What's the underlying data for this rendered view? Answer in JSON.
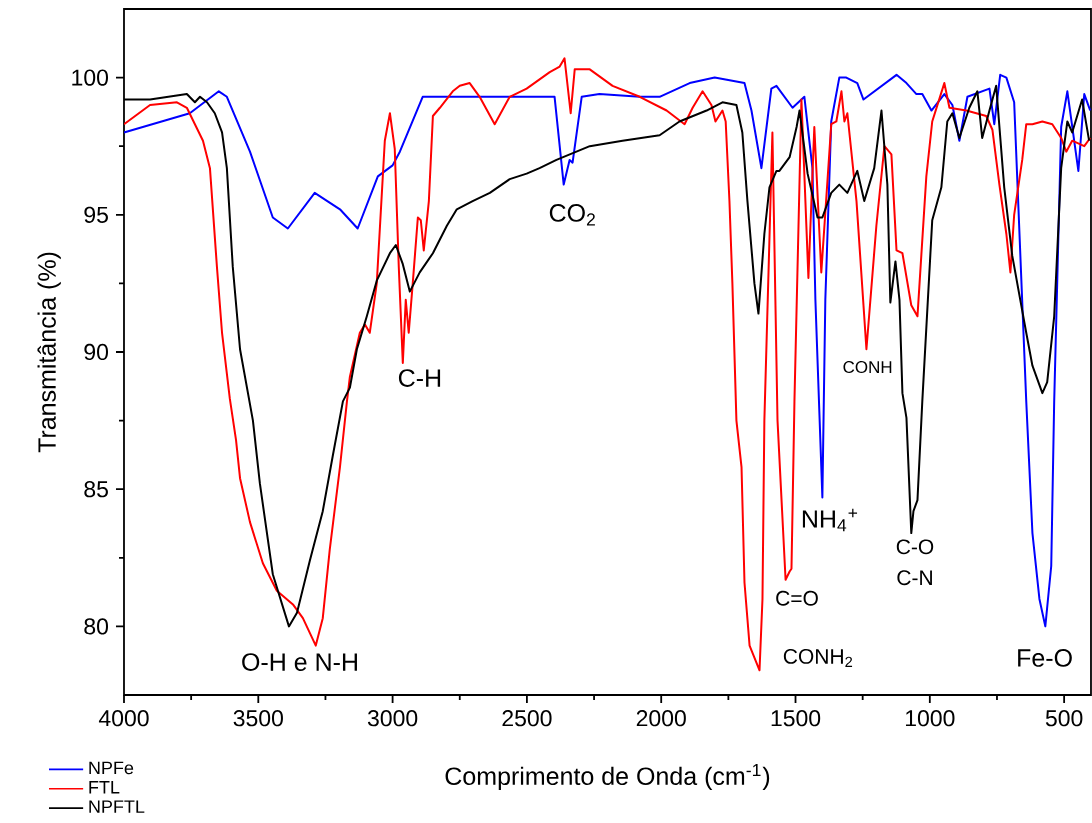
{
  "chart_data": {
    "type": "line",
    "xlabel": "Comprimento de Onda (cm$^{-1}$)",
    "ylabel": "Transmitância (%)",
    "xlim": [
      4000,
      400
    ],
    "xticks": [
      4000,
      3500,
      3000,
      2500,
      2000,
      1500,
      1000,
      500
    ],
    "ylim": [
      77.5,
      102.5
    ],
    "yticks": [
      80,
      85,
      90,
      95,
      100
    ],
    "legend": "bottom left",
    "line_style": "solid",
    "series": [
      {
        "name": "NPFe",
        "color": "#0000ff",
        "x": [
          4000,
          3755,
          3647,
          3617,
          3531,
          3446,
          3390,
          3290,
          3196,
          3130,
          3055,
          3000,
          2973,
          2888,
          2824,
          2397,
          2363,
          2341,
          2330,
          2296,
          2230,
          2080,
          2006,
          1894,
          1801,
          1690,
          1664,
          1627,
          1590,
          1571,
          1511,
          1467,
          1437,
          1426,
          1400,
          1389,
          1367,
          1337,
          1311,
          1270,
          1247,
          1124,
          1087,
          1050,
          1028,
          994,
          946,
          916,
          890,
          860,
          778,
          760,
          738,
          715,
          686,
          641,
          618,
          592,
          570,
          548,
          537,
          511,
          488,
          447,
          425,
          403
        ],
        "values": [
          98.0,
          98.7,
          99.5,
          99.3,
          97.3,
          94.9,
          94.5,
          95.8,
          95.2,
          94.5,
          96.4,
          96.8,
          97.3,
          99.3,
          99.3,
          99.3,
          96.1,
          97.0,
          96.9,
          99.3,
          99.4,
          99.3,
          99.3,
          99.8,
          100.0,
          99.8,
          98.8,
          96.7,
          99.6,
          99.7,
          98.9,
          99.3,
          96.7,
          91.9,
          84.7,
          91.9,
          98.4,
          100.0,
          100.0,
          99.8,
          99.2,
          100.1,
          99.8,
          99.4,
          99.4,
          98.8,
          99.4,
          99.0,
          97.7,
          99.3,
          99.6,
          98.3,
          100.1,
          100.0,
          99.1,
          88.2,
          83.4,
          81.0,
          80.0,
          82.2,
          88.2,
          98.2,
          99.5,
          96.6,
          99.4,
          98.8
        ]
      },
      {
        "name": "FTL",
        "color": "#ff0000",
        "x": [
          4000,
          3903,
          3803,
          3766,
          3736,
          3706,
          3680,
          3654,
          3635,
          3606,
          3583,
          3568,
          3531,
          3483,
          3431,
          3371,
          3334,
          3286,
          3260,
          3234,
          3196,
          3170,
          3159,
          3122,
          3103,
          3085,
          3059,
          3029,
          3010,
          2992,
          2977,
          2962,
          2951,
          2940,
          2925,
          2906,
          2895,
          2884,
          2865,
          2850,
          2824,
          2776,
          2750,
          2713,
          2676,
          2620,
          2564,
          2501,
          2415,
          2378,
          2360,
          2337,
          2322,
          2266,
          2181,
          2080,
          1980,
          1913,
          1883,
          1846,
          1813,
          1798,
          1772,
          1760,
          1746,
          1735,
          1720,
          1701,
          1690,
          1671,
          1634,
          1623,
          1616,
          1586,
          1567,
          1537,
          1522,
          1515,
          1504,
          1478,
          1452,
          1430,
          1404,
          1367,
          1348,
          1329,
          1318,
          1307,
          1273,
          1236,
          1199,
          1169,
          1143,
          1124,
          1102,
          1069,
          1046,
          1013,
          991,
          946,
          927,
          864,
          790,
          767,
          741,
          715,
          700,
          686,
          656,
          641,
          618,
          581,
          544,
          511,
          492,
          470,
          425,
          403
        ],
        "values": [
          98.3,
          99.0,
          99.1,
          98.9,
          98.3,
          97.7,
          96.7,
          93.1,
          90.7,
          88.3,
          86.8,
          85.4,
          83.8,
          82.3,
          81.3,
          80.8,
          80.3,
          79.3,
          80.3,
          82.8,
          85.8,
          88.2,
          89.1,
          90.7,
          91.0,
          90.7,
          92.5,
          97.7,
          98.7,
          97.4,
          93.1,
          89.6,
          91.9,
          90.7,
          92.5,
          94.9,
          94.8,
          93.7,
          95.5,
          98.6,
          98.9,
          99.5,
          99.7,
          99.8,
          99.3,
          98.3,
          99.3,
          99.6,
          100.2,
          100.4,
          100.7,
          98.7,
          100.3,
          100.3,
          99.7,
          99.3,
          98.8,
          98.3,
          98.9,
          99.5,
          99.0,
          98.4,
          98.8,
          98.4,
          95.5,
          92.5,
          87.5,
          85.8,
          81.6,
          79.3,
          78.4,
          81.0,
          87.5,
          98.0,
          87.5,
          81.7,
          82.0,
          82.1,
          88.2,
          99.2,
          92.7,
          98.2,
          92.9,
          98.3,
          98.4,
          99.5,
          98.4,
          98.7,
          95.5,
          90.1,
          94.6,
          97.5,
          97.2,
          93.7,
          93.6,
          91.7,
          91.3,
          96.4,
          98.4,
          99.8,
          98.9,
          98.8,
          98.6,
          98.1,
          96.1,
          94.3,
          92.9,
          95.0,
          97.0,
          98.3,
          98.3,
          98.4,
          98.3,
          97.8,
          97.3,
          97.7,
          97.5,
          97.8
        ]
      },
      {
        "name": "NPFTL",
        "color": "#000000",
        "x": [
          4000,
          3903,
          3766,
          3736,
          3717,
          3691,
          3662,
          3635,
          3617,
          3595,
          3568,
          3520,
          3494,
          3446,
          3386,
          3356,
          3308,
          3260,
          3223,
          3185,
          3159,
          3133,
          3096,
          3059,
          3010,
          2988,
          2962,
          2936,
          2899,
          2850,
          2798,
          2761,
          2702,
          2638,
          2564,
          2501,
          2453,
          2390,
          2266,
          2144,
          2006,
          1932,
          1831,
          1772,
          1720,
          1698,
          1679,
          1653,
          1638,
          1616,
          1597,
          1571,
          1560,
          1522,
          1496,
          1485,
          1455,
          1418,
          1400,
          1367,
          1337,
          1307,
          1270,
          1244,
          1207,
          1180,
          1158,
          1147,
          1128,
          1113,
          1102,
          1087,
          1069,
          1061,
          1046,
          1028,
          991,
          957,
          935,
          916,
          890,
          853,
          823,
          805,
          778,
          753,
          723,
          693,
          667,
          641,
          618,
          581,
          563,
          537,
          511,
          488,
          470,
          433,
          407
        ],
        "values": [
          99.2,
          99.2,
          99.4,
          99.1,
          99.3,
          99.1,
          98.7,
          98.0,
          96.7,
          93.1,
          90.1,
          87.5,
          85.2,
          81.9,
          80.0,
          80.5,
          82.4,
          84.2,
          86.2,
          88.2,
          88.7,
          90.1,
          91.3,
          92.6,
          93.6,
          93.9,
          93.2,
          92.2,
          92.9,
          93.6,
          94.6,
          95.2,
          95.5,
          95.8,
          96.3,
          96.5,
          96.7,
          97.0,
          97.5,
          97.7,
          97.9,
          98.4,
          98.8,
          99.1,
          99.0,
          98.0,
          95.5,
          92.5,
          91.4,
          94.3,
          96.0,
          96.6,
          96.6,
          97.1,
          98.2,
          98.8,
          96.5,
          94.9,
          94.9,
          95.8,
          96.1,
          95.8,
          96.6,
          95.5,
          96.7,
          98.8,
          96.1,
          91.8,
          93.3,
          91.9,
          88.5,
          87.6,
          83.4,
          84.2,
          84.6,
          88.2,
          94.8,
          96.0,
          98.4,
          98.7,
          97.8,
          98.9,
          99.5,
          97.8,
          98.8,
          99.7,
          96.0,
          93.5,
          92.1,
          90.7,
          89.5,
          88.5,
          88.9,
          91.3,
          96.7,
          98.4,
          98.0,
          99.2,
          97.7
        ]
      }
    ],
    "annotations": [
      "O-H e N-H",
      "C-H",
      "CO$_{2}$",
      "C=O",
      "CONH$_{2}$",
      "NH$_{4}$$^{+}$",
      "CONH",
      "C-O",
      "C-N",
      "Fe-O"
    ]
  }
}
